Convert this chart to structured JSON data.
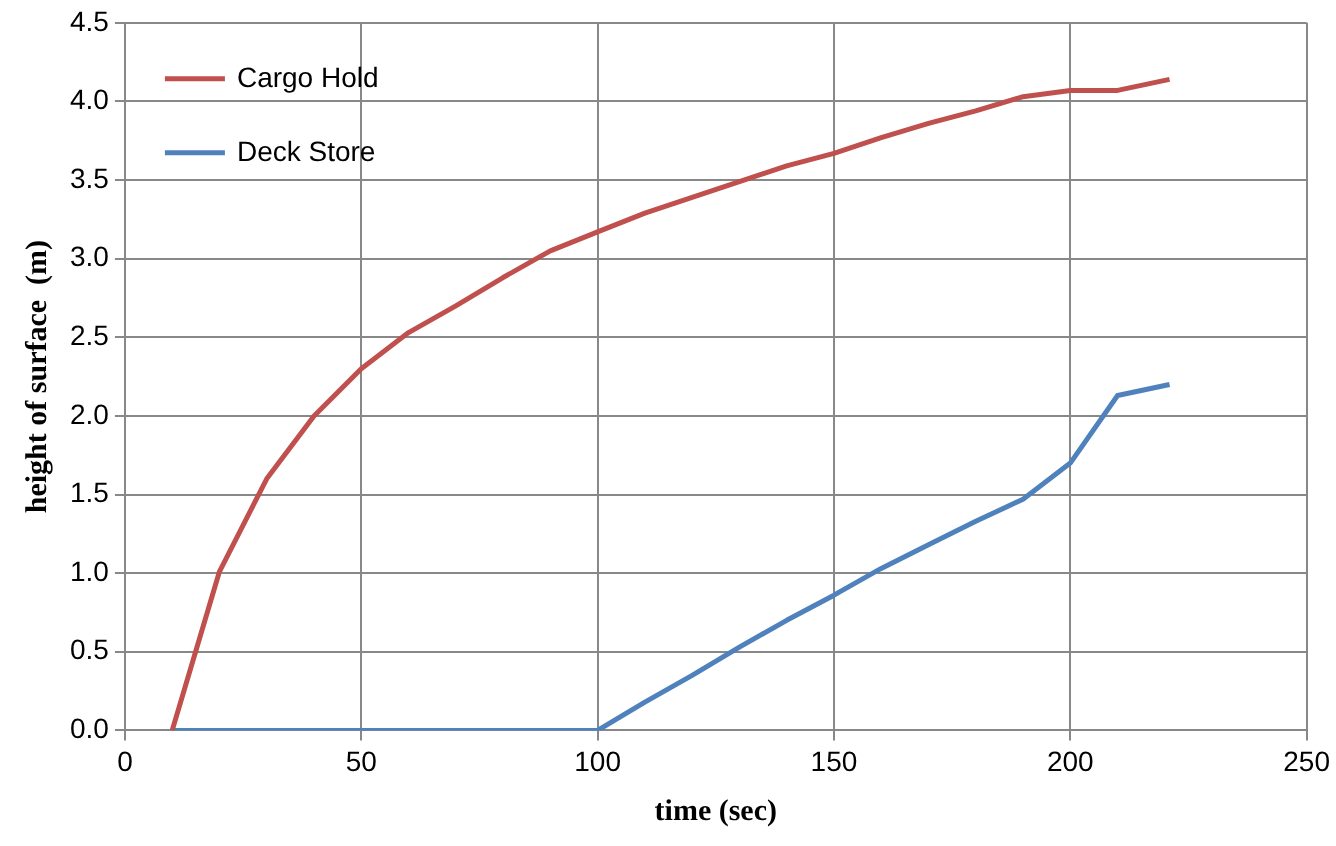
{
  "chart_data": {
    "type": "line",
    "xlabel": "time (sec)",
    "ylabel": "height of surface  (m)",
    "xlim": [
      0,
      250
    ],
    "xticks": [
      0,
      50,
      100,
      150,
      200,
      250
    ],
    "ylim": [
      0,
      4.5
    ],
    "yticks": [
      {
        "value": 0,
        "label": "0.0"
      },
      {
        "value": 0.5,
        "label": "0.5"
      },
      {
        "value": 1,
        "label": "1.0"
      },
      {
        "value": 1.5,
        "label": "1.5"
      },
      {
        "value": 2,
        "label": "2.0"
      },
      {
        "value": 2.5,
        "label": "2.5"
      },
      {
        "value": 3,
        "label": "3.0"
      },
      {
        "value": 3.5,
        "label": "3.5"
      },
      {
        "value": 4,
        "label": "4.0"
      },
      {
        "value": 4.5,
        "label": "4.5"
      }
    ],
    "grid": true,
    "legend": "top left",
    "marker": "none",
    "line_style": "solid",
    "series": [
      {
        "name": "Cargo Hold",
        "color": "#c0504d",
        "x": [
          10,
          20,
          30,
          40,
          50,
          60,
          70,
          80,
          90,
          100,
          110,
          120,
          130,
          140,
          150,
          160,
          170,
          180,
          190,
          200,
          210,
          221
        ],
        "values": [
          0,
          1.01,
          1.6,
          2.0,
          2.3,
          2.53,
          2.7,
          2.88,
          3.05,
          3.17,
          3.29,
          3.39,
          3.49,
          3.59,
          3.67,
          3.77,
          3.86,
          3.94,
          4.03,
          4.07,
          4.07,
          4.14
        ]
      },
      {
        "name": "Deck Store",
        "color": "#4f81bd",
        "x": [
          10,
          100,
          110,
          120,
          130,
          140,
          150,
          160,
          170,
          180,
          190,
          200,
          210,
          221
        ],
        "values": [
          0,
          0,
          0.18,
          0.35,
          0.53,
          0.7,
          0.86,
          1.03,
          1.18,
          1.33,
          1.47,
          1.7,
          2.13,
          2.2
        ]
      }
    ]
  }
}
